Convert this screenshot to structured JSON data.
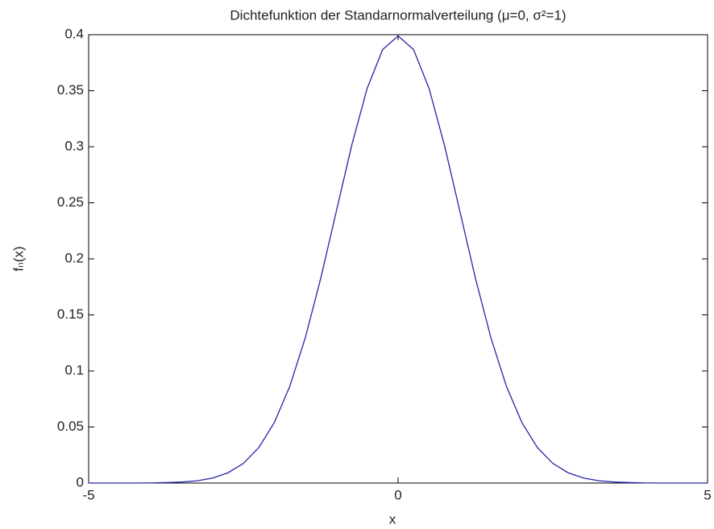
{
  "chart_data": {
    "type": "line",
    "title": "Dichtefunktion der Standarnormalverteilung (μ=0, σ²=1)",
    "xlabel": "x",
    "ylabel": "fₙ(x)",
    "x": [
      -5,
      -4.75,
      -4.5,
      -4.25,
      -4,
      -3.75,
      -3.5,
      -3.25,
      -3,
      -2.75,
      -2.5,
      -2.25,
      -2,
      -1.75,
      -1.5,
      -1.25,
      -1,
      -0.75,
      -0.5,
      -0.25,
      0,
      0.25,
      0.5,
      0.75,
      1,
      1.25,
      1.5,
      1.75,
      2,
      2.25,
      2.5,
      2.75,
      3,
      3.25,
      3.5,
      3.75,
      4,
      4.25,
      4.5,
      4.75,
      5
    ],
    "series": [
      {
        "color": "#2424a8",
        "values": [
          0,
          0,
          0,
          0,
          0.0001,
          0.0004,
          0.0009,
          0.002,
          0.0044,
          0.0091,
          0.0175,
          0.0317,
          0.054,
          0.0863,
          0.1295,
          0.1826,
          0.242,
          0.3011,
          0.3521,
          0.3867,
          0.3989,
          0.3867,
          0.3521,
          0.3011,
          0.242,
          0.1826,
          0.1295,
          0.0863,
          0.054,
          0.0317,
          0.0175,
          0.0091,
          0.0044,
          0.002,
          0.0009,
          0.0004,
          0.0001,
          0,
          0,
          0,
          0
        ]
      }
    ],
    "xlim": [
      -5,
      5
    ],
    "xticks": [
      -5,
      0,
      5
    ],
    "ylim": [
      0,
      0.4
    ],
    "yticks": [
      0,
      0.05,
      0.1,
      0.15,
      0.2,
      0.25,
      0.3,
      0.35,
      0.4
    ],
    "grid": false
  }
}
